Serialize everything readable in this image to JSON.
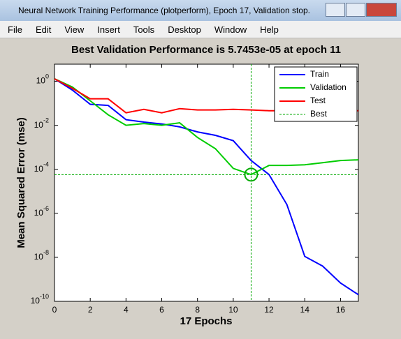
{
  "window": {
    "title": "Neural Network Training Performance (plotperform), Epoch 17, Validation stop.",
    "menu": [
      "File",
      "Edit",
      "View",
      "Insert",
      "Tools",
      "Desktop",
      "Window",
      "Help"
    ]
  },
  "chart_data": {
    "type": "line",
    "title": "Best Validation Performance is 5.7453e-05 at epoch 11",
    "xlabel": "17 Epochs",
    "ylabel": "Mean Squared Error  (mse)",
    "x": [
      0,
      1,
      2,
      3,
      4,
      5,
      6,
      7,
      8,
      9,
      10,
      11,
      12,
      13,
      14,
      15,
      16,
      17
    ],
    "series": [
      {
        "name": "Train",
        "color": "#0000ff",
        "values": [
          1.3,
          0.4,
          0.09,
          0.08,
          0.018,
          0.014,
          0.0115,
          0.0085,
          0.005,
          0.0035,
          0.002,
          0.00025,
          5.8e-05,
          2.5e-06,
          1.1e-08,
          4e-09,
          6.8e-10,
          2e-10
        ]
      },
      {
        "name": "Validation",
        "color": "#00cc00",
        "values": [
          1.3,
          0.55,
          0.13,
          0.03,
          0.01,
          0.012,
          0.01,
          0.013,
          0.0028,
          0.00087,
          0.00011,
          5.7453e-05,
          0.00015,
          0.00015,
          0.00016,
          0.0002,
          0.00025,
          0.00027
        ]
      },
      {
        "name": "Test",
        "color": "#ff0000",
        "values": [
          1.3,
          0.48,
          0.16,
          0.16,
          0.037,
          0.053,
          0.037,
          0.057,
          0.05,
          0.05,
          0.053,
          0.05,
          0.046,
          0.046,
          0.046,
          0.046,
          0.046,
          0.046
        ]
      }
    ],
    "best": {
      "name": "Best",
      "color": "#00aa00",
      "epoch": 11,
      "value": 5.7453e-05
    },
    "xlim": [
      0,
      17
    ],
    "xticks": [
      0,
      2,
      4,
      6,
      8,
      10,
      12,
      14,
      16
    ],
    "ylim": [
      1e-10,
      6
    ],
    "log_y": true,
    "yticks": [
      {
        "value": 1,
        "label": "10^0"
      },
      {
        "value": 0.01,
        "label": "10^-2"
      },
      {
        "value": 0.0001,
        "label": "10^-4"
      },
      {
        "value": 1e-06,
        "label": "10^-6"
      },
      {
        "value": 1e-08,
        "label": "10^-8"
      },
      {
        "value": 1e-10,
        "label": "10^-10"
      }
    ],
    "legend": "upper right"
  }
}
